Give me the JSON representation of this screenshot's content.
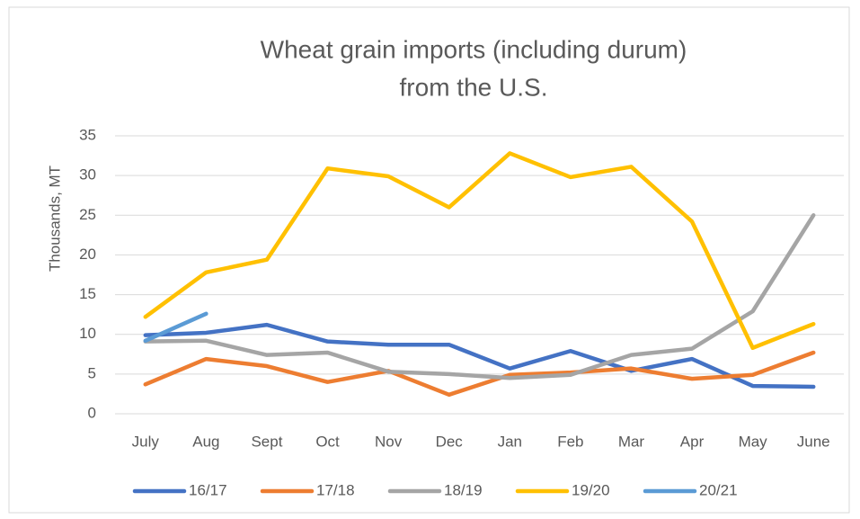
{
  "chart_data": {
    "type": "line",
    "title": [
      "Wheat grain imports (including durum)",
      "from the U.S."
    ],
    "y_label": "Thousands, MT",
    "categories": [
      "July",
      "Aug",
      "Sept",
      "Oct",
      "Nov",
      "Dec",
      "Jan",
      "Feb",
      "Mar",
      "Apr",
      "May",
      "June"
    ],
    "series": [
      {
        "name": "16/17",
        "color": "#4472c4",
        "values": [
          9.9,
          10.2,
          11.2,
          9.1,
          8.7,
          8.7,
          5.7,
          7.9,
          5.4,
          6.9,
          3.5,
          3.4
        ]
      },
      {
        "name": "17/18",
        "color": "#ed7d31",
        "values": [
          3.7,
          6.9,
          6.0,
          4.0,
          5.4,
          2.4,
          4.9,
          5.2,
          5.7,
          4.4,
          4.9,
          7.7
        ]
      },
      {
        "name": "18/19",
        "color": "#a5a5a5",
        "values": [
          9.1,
          9.2,
          7.4,
          7.7,
          5.3,
          5.0,
          4.5,
          4.9,
          7.4,
          8.2,
          12.9,
          25.0
        ]
      },
      {
        "name": "19/20",
        "color": "#ffc000",
        "values": [
          12.2,
          17.8,
          19.4,
          30.9,
          29.9,
          26.0,
          32.8,
          29.8,
          31.1,
          24.2,
          8.3,
          11.3
        ]
      },
      {
        "name": "20/21",
        "color": "#5b9bd5",
        "values": [
          9.2,
          12.6,
          null,
          null,
          null,
          null,
          null,
          null,
          null,
          null,
          null,
          null
        ]
      }
    ],
    "ylim": [
      0,
      35
    ],
    "yticks": [
      0,
      5,
      10,
      15,
      20,
      25,
      30,
      35
    ],
    "grid": true,
    "legend": "bottom"
  }
}
